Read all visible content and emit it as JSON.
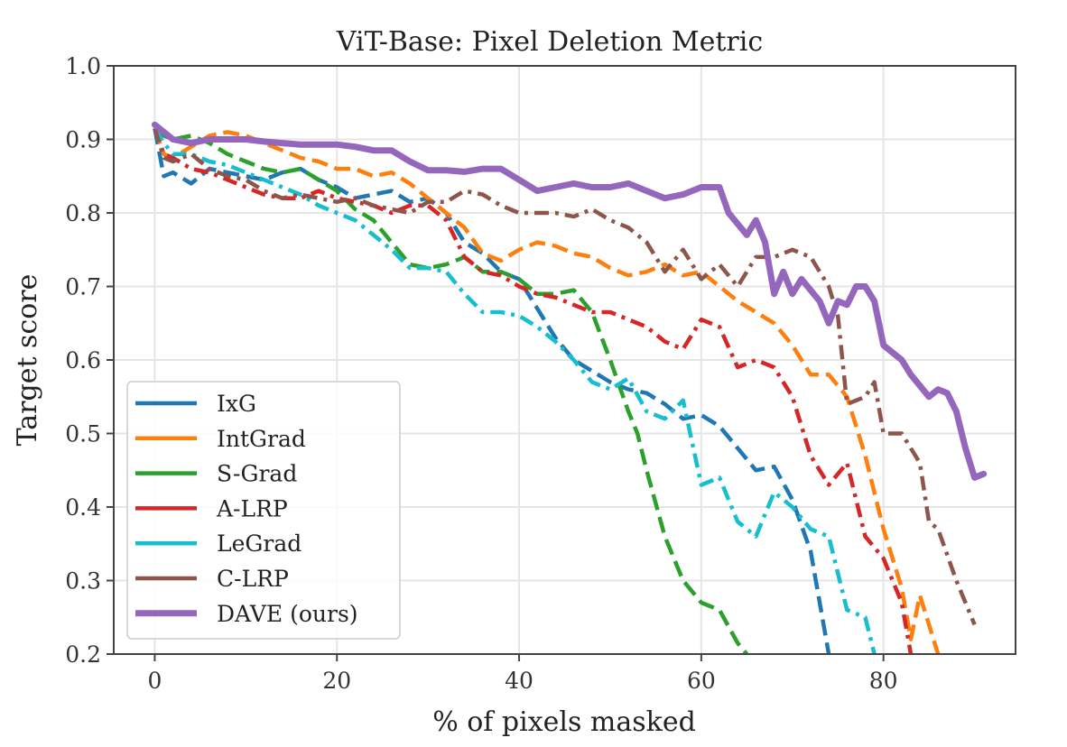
{
  "chart_data": {
    "type": "line",
    "title": "ViT-Base: Pixel Deletion Metric",
    "xlabel": "% of pixels masked",
    "ylabel": "Target score",
    "xlim": [
      -4.5,
      94.5
    ],
    "ylim": [
      0.2,
      1.0
    ],
    "xticks": [
      0,
      20,
      40,
      60,
      80
    ],
    "xtick_labels": [
      "0",
      "20",
      "40",
      "60",
      "80"
    ],
    "yticks": [
      0.2,
      0.3,
      0.4,
      0.5,
      0.6,
      0.7,
      0.8,
      0.9,
      1.0
    ],
    "ytick_labels": [
      "0.2",
      "0.3",
      "0.4",
      "0.5",
      "0.6",
      "0.7",
      "0.8",
      "0.9",
      "1.0"
    ],
    "grid": true,
    "legend_position": "lower-left",
    "series": [
      {
        "name": "IxG",
        "color": "#1f77b4",
        "style": "dashed",
        "x": [
          0,
          1,
          2,
          4,
          6,
          8,
          10,
          12,
          14,
          16,
          18,
          20,
          22,
          24,
          26,
          28,
          30,
          32,
          34,
          36,
          38,
          40,
          42,
          44,
          46,
          48,
          50,
          52,
          54,
          56,
          58,
          60,
          62,
          64,
          66,
          68,
          70,
          72,
          74
        ],
        "y": [
          0.915,
          0.85,
          0.855,
          0.84,
          0.86,
          0.855,
          0.85,
          0.845,
          0.855,
          0.86,
          0.845,
          0.835,
          0.82,
          0.825,
          0.83,
          0.815,
          0.82,
          0.8,
          0.76,
          0.745,
          0.72,
          0.71,
          0.67,
          0.63,
          0.6,
          0.585,
          0.57,
          0.56,
          0.555,
          0.54,
          0.52,
          0.525,
          0.51,
          0.48,
          0.45,
          0.455,
          0.41,
          0.34,
          0.2
        ]
      },
      {
        "name": "IntGrad",
        "color": "#ff7f0e",
        "style": "dashed",
        "x": [
          0,
          1,
          2,
          4,
          6,
          8,
          10,
          12,
          14,
          16,
          18,
          20,
          22,
          24,
          26,
          28,
          30,
          32,
          34,
          36,
          38,
          40,
          42,
          44,
          46,
          48,
          50,
          52,
          54,
          56,
          58,
          60,
          62,
          64,
          66,
          68,
          70,
          72,
          74,
          76,
          78,
          80,
          82,
          83,
          84,
          86
        ],
        "y": [
          0.915,
          0.88,
          0.875,
          0.89,
          0.905,
          0.91,
          0.905,
          0.895,
          0.885,
          0.875,
          0.87,
          0.86,
          0.86,
          0.85,
          0.855,
          0.84,
          0.82,
          0.8,
          0.78,
          0.745,
          0.735,
          0.75,
          0.76,
          0.755,
          0.745,
          0.74,
          0.725,
          0.715,
          0.72,
          0.73,
          0.715,
          0.72,
          0.7,
          0.68,
          0.665,
          0.65,
          0.62,
          0.58,
          0.58,
          0.55,
          0.47,
          0.37,
          0.29,
          0.22,
          0.28,
          0.2
        ]
      },
      {
        "name": "S-Grad",
        "color": "#2ca02c",
        "style": "dashed",
        "x": [
          0,
          1,
          2,
          4,
          6,
          8,
          10,
          12,
          14,
          16,
          18,
          20,
          22,
          24,
          26,
          28,
          30,
          32,
          34,
          36,
          38,
          40,
          42,
          44,
          46,
          48,
          50,
          52,
          53,
          54,
          56,
          58,
          60,
          62,
          64,
          65
        ],
        "y": [
          0.915,
          0.905,
          0.9,
          0.905,
          0.895,
          0.88,
          0.87,
          0.86,
          0.855,
          0.86,
          0.845,
          0.83,
          0.805,
          0.79,
          0.76,
          0.73,
          0.725,
          0.73,
          0.74,
          0.72,
          0.72,
          0.71,
          0.69,
          0.69,
          0.695,
          0.665,
          0.6,
          0.53,
          0.5,
          0.45,
          0.36,
          0.3,
          0.27,
          0.26,
          0.215,
          0.2
        ]
      },
      {
        "name": "A-LRP",
        "color": "#d62728",
        "style": "dashdot",
        "x": [
          0,
          1,
          2,
          4,
          6,
          8,
          10,
          12,
          14,
          16,
          18,
          20,
          22,
          24,
          26,
          28,
          30,
          32,
          34,
          36,
          38,
          40,
          42,
          44,
          46,
          48,
          50,
          52,
          54,
          56,
          58,
          60,
          62,
          64,
          66,
          68,
          70,
          72,
          74,
          76,
          78,
          80,
          82,
          83
        ],
        "y": [
          0.915,
          0.88,
          0.875,
          0.86,
          0.855,
          0.845,
          0.835,
          0.825,
          0.82,
          0.82,
          0.83,
          0.82,
          0.815,
          0.81,
          0.8,
          0.81,
          0.81,
          0.79,
          0.74,
          0.72,
          0.715,
          0.7,
          0.69,
          0.685,
          0.675,
          0.665,
          0.665,
          0.655,
          0.645,
          0.625,
          0.615,
          0.655,
          0.645,
          0.59,
          0.6,
          0.59,
          0.55,
          0.47,
          0.43,
          0.46,
          0.36,
          0.33,
          0.27,
          0.2
        ]
      },
      {
        "name": "LeGrad",
        "color": "#17becf",
        "style": "dashdot",
        "x": [
          0,
          1,
          2,
          4,
          6,
          8,
          10,
          12,
          14,
          16,
          18,
          20,
          22,
          24,
          26,
          28,
          30,
          32,
          34,
          36,
          38,
          40,
          42,
          44,
          46,
          48,
          50,
          52,
          54,
          56,
          58,
          60,
          62,
          64,
          66,
          68,
          70,
          72,
          74,
          76,
          78,
          79
        ],
        "y": [
          0.915,
          0.895,
          0.88,
          0.88,
          0.87,
          0.865,
          0.855,
          0.845,
          0.835,
          0.825,
          0.81,
          0.8,
          0.79,
          0.77,
          0.75,
          0.725,
          0.725,
          0.72,
          0.69,
          0.665,
          0.665,
          0.66,
          0.645,
          0.625,
          0.6,
          0.57,
          0.56,
          0.575,
          0.53,
          0.52,
          0.545,
          0.43,
          0.44,
          0.38,
          0.36,
          0.42,
          0.4,
          0.37,
          0.36,
          0.26,
          0.25,
          0.2
        ]
      },
      {
        "name": "C-LRP",
        "color": "#8c564b",
        "style": "dashdot",
        "x": [
          0,
          1,
          2,
          4,
          6,
          8,
          10,
          12,
          14,
          16,
          18,
          20,
          22,
          24,
          26,
          28,
          30,
          32,
          34,
          36,
          38,
          40,
          42,
          44,
          46,
          48,
          50,
          52,
          54,
          56,
          58,
          60,
          62,
          64,
          66,
          68,
          70,
          72,
          74,
          75,
          76,
          78,
          79,
          80,
          82,
          84,
          85,
          86,
          88,
          90
        ],
        "y": [
          0.915,
          0.875,
          0.87,
          0.88,
          0.86,
          0.85,
          0.845,
          0.83,
          0.82,
          0.825,
          0.82,
          0.815,
          0.82,
          0.81,
          0.805,
          0.8,
          0.815,
          0.815,
          0.83,
          0.825,
          0.81,
          0.8,
          0.8,
          0.8,
          0.795,
          0.805,
          0.79,
          0.78,
          0.76,
          0.72,
          0.75,
          0.71,
          0.73,
          0.7,
          0.74,
          0.74,
          0.75,
          0.74,
          0.7,
          0.66,
          0.54,
          0.55,
          0.57,
          0.5,
          0.5,
          0.46,
          0.38,
          0.37,
          0.3,
          0.24
        ]
      },
      {
        "name": "DAVE (ours)",
        "color": "#9467bd",
        "style": "solid",
        "x": [
          0,
          1,
          2,
          4,
          6,
          8,
          10,
          12,
          14,
          16,
          18,
          20,
          22,
          24,
          26,
          28,
          30,
          32,
          34,
          36,
          38,
          40,
          42,
          44,
          46,
          48,
          50,
          52,
          54,
          56,
          58,
          60,
          62,
          63,
          64,
          65,
          66,
          67,
          68,
          69,
          70,
          71,
          72,
          73,
          74,
          75,
          76,
          77,
          78,
          79,
          80,
          81,
          82,
          83,
          84,
          85,
          86,
          87,
          88,
          89,
          90,
          91
        ],
        "y": [
          0.92,
          0.91,
          0.9,
          0.895,
          0.9,
          0.9,
          0.9,
          0.897,
          0.895,
          0.893,
          0.893,
          0.893,
          0.89,
          0.885,
          0.885,
          0.87,
          0.858,
          0.858,
          0.856,
          0.86,
          0.86,
          0.845,
          0.83,
          0.835,
          0.84,
          0.835,
          0.835,
          0.84,
          0.83,
          0.82,
          0.825,
          0.835,
          0.835,
          0.8,
          0.785,
          0.77,
          0.79,
          0.76,
          0.69,
          0.72,
          0.69,
          0.71,
          0.695,
          0.68,
          0.65,
          0.68,
          0.675,
          0.7,
          0.7,
          0.68,
          0.62,
          0.61,
          0.6,
          0.58,
          0.565,
          0.55,
          0.56,
          0.555,
          0.53,
          0.48,
          0.44,
          0.445
        ]
      }
    ]
  }
}
